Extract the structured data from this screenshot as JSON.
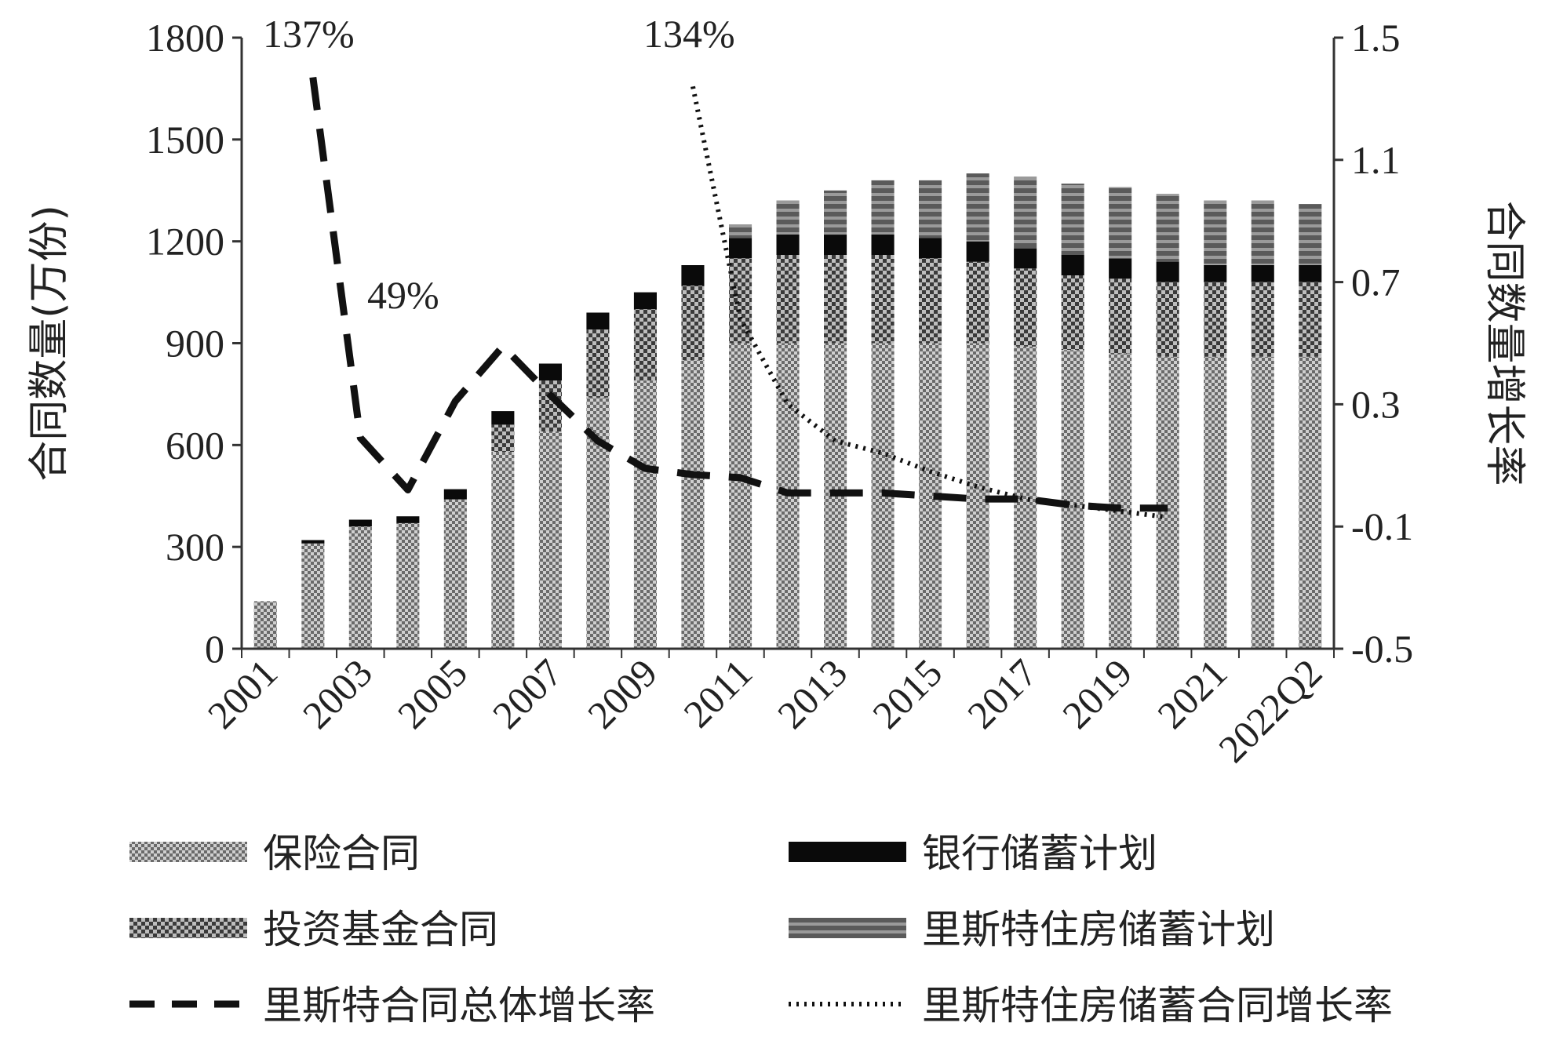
{
  "chart_data": {
    "type": "bar",
    "categories": [
      "2001",
      "2002",
      "2003",
      "2004",
      "2005",
      "2006",
      "2007",
      "2008",
      "2009",
      "2010",
      "2011",
      "2012",
      "2013",
      "2014",
      "2015",
      "2016",
      "2017",
      "2018",
      "2019",
      "2020",
      "2021",
      "2022",
      "2022Q2"
    ],
    "x_tick_labels": [
      "2001",
      "2003",
      "2005",
      "2007",
      "2009",
      "2011",
      "2013",
      "2015",
      "2017",
      "2019",
      "2021",
      "2022Q2"
    ],
    "y_left": {
      "label": "合同数量(万份)",
      "ylim": [
        0,
        1800
      ],
      "ticks": [
        "0",
        "300",
        "600",
        "900",
        "1200",
        "1500",
        "1800"
      ]
    },
    "y_right": {
      "label": "合同数量增长率",
      "ylim": [
        -0.5,
        1.5
      ],
      "ticks": [
        "-0.5",
        "-0.1",
        "0.3",
        "0.7",
        "1.1",
        "1.5"
      ]
    },
    "bar_series": [
      {
        "name": "保险合同",
        "values": [
          140,
          310,
          360,
          370,
          440,
          580,
          640,
          740,
          790,
          850,
          900,
          900,
          900,
          900,
          900,
          900,
          890,
          880,
          870,
          860,
          860,
          860,
          860
        ]
      },
      {
        "name": "投资基金合同",
        "values": [
          0,
          0,
          0,
          0,
          0,
          80,
          150,
          200,
          210,
          220,
          250,
          260,
          260,
          260,
          250,
          240,
          230,
          220,
          220,
          220,
          220,
          220,
          220
        ]
      },
      {
        "name": "银行储蓄计划",
        "values": [
          0,
          10,
          20,
          20,
          30,
          40,
          50,
          50,
          50,
          60,
          60,
          60,
          60,
          60,
          60,
          60,
          60,
          60,
          60,
          60,
          50,
          50,
          50
        ]
      },
      {
        "name": "里斯特住房储蓄计划",
        "values": [
          0,
          0,
          0,
          0,
          0,
          0,
          0,
          0,
          0,
          0,
          40,
          100,
          130,
          160,
          170,
          200,
          210,
          210,
          210,
          200,
          190,
          190,
          180
        ]
      }
    ],
    "line_series": [
      {
        "name": "里斯特合同总体增长率",
        "style": "dashed",
        "x_start": 1,
        "values": [
          1.37,
          0.19,
          0.02,
          0.31,
          0.49,
          0.33,
          0.18,
          0.09,
          0.07,
          0.06,
          0.01,
          0.01,
          0.01,
          0.0,
          -0.01,
          -0.01,
          -0.03,
          -0.04,
          -0.04
        ]
      },
      {
        "name": "里斯特住房储蓄合同增长率",
        "style": "dotted",
        "x_start": 9,
        "values": [
          1.34,
          0.58,
          0.3,
          0.18,
          0.14,
          0.08,
          0.03,
          -0.01,
          -0.03,
          -0.05,
          -0.07
        ]
      }
    ],
    "annotations": [
      {
        "text": "137%",
        "near": "2002"
      },
      {
        "text": "49%",
        "near": "2006"
      },
      {
        "text": "134%",
        "near": "2010"
      }
    ],
    "legend": [
      {
        "name": "保险合同",
        "kind": "bar"
      },
      {
        "name": "银行储蓄计划",
        "kind": "bar"
      },
      {
        "name": "投资基金合同",
        "kind": "bar"
      },
      {
        "name": "里斯特住房储蓄计划",
        "kind": "bar"
      },
      {
        "name": "里斯特合同总体增长率",
        "kind": "dashed"
      },
      {
        "name": "里斯特住房储蓄合同增长率",
        "kind": "dotted"
      }
    ],
    "legend_placement": "bottom",
    "grid": false
  }
}
